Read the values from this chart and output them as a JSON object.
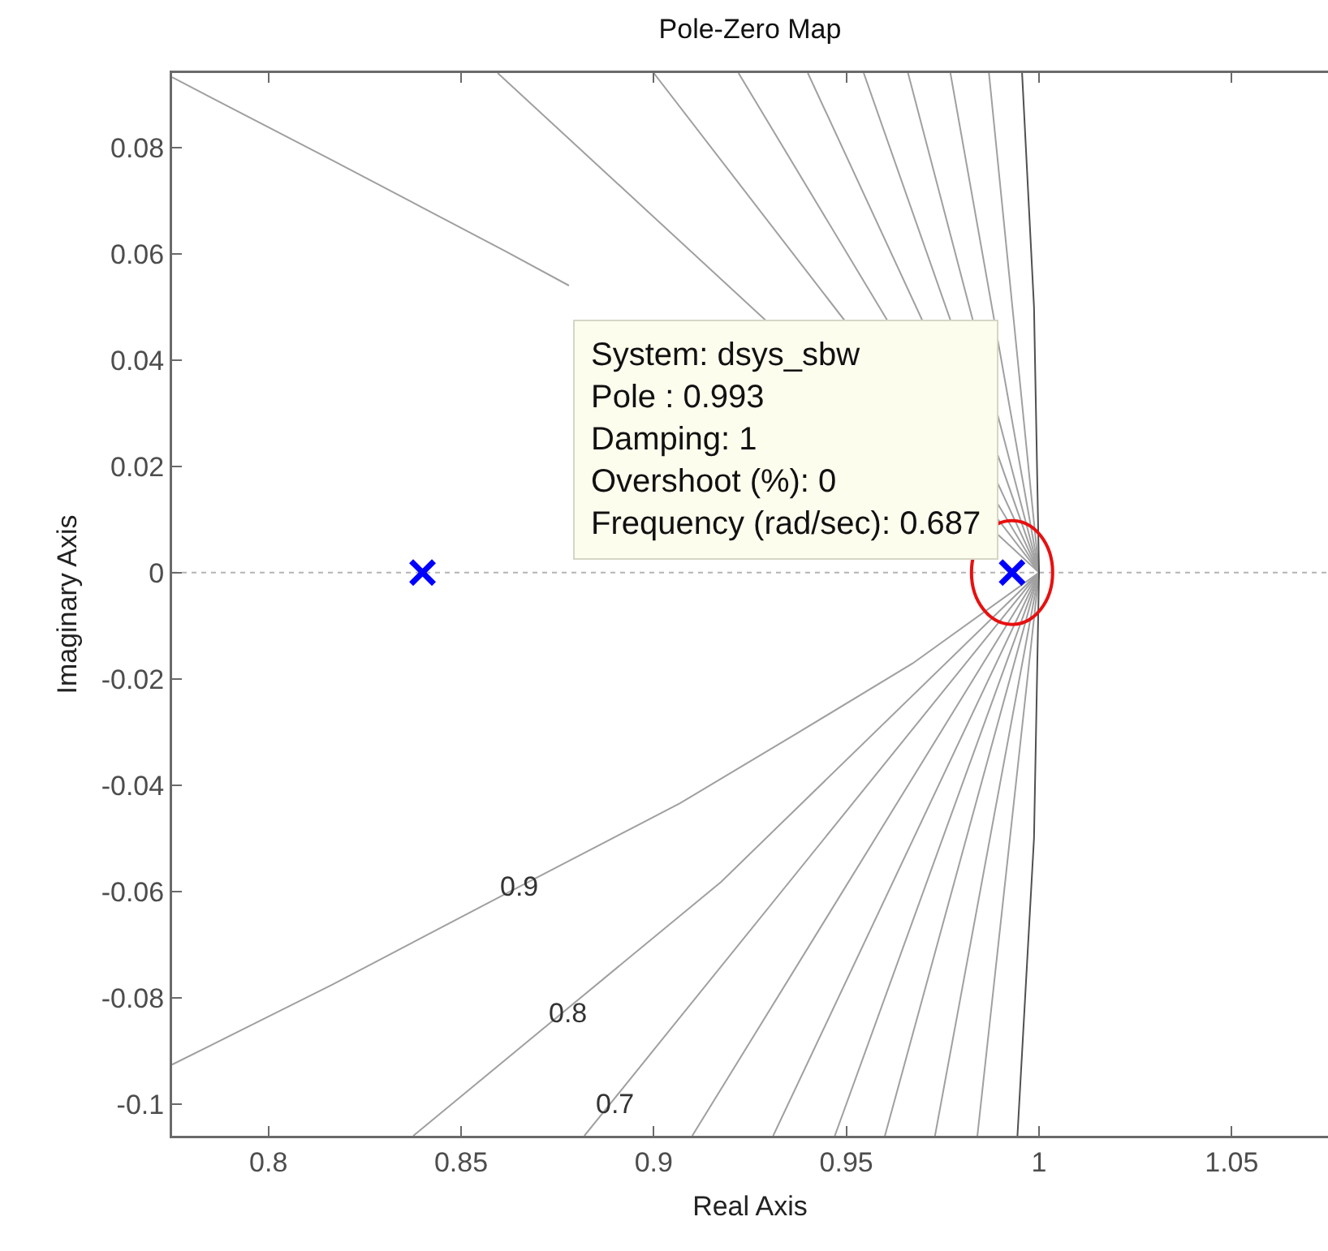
{
  "chart_data": {
    "type": "scatter",
    "title": "Pole-Zero Map",
    "xlabel": "Real Axis",
    "ylabel": "Imaginary Axis",
    "xlim": [
      0.775,
      1.075
    ],
    "ylim": [
      -0.106,
      0.094
    ],
    "xticks": [
      0.8,
      0.85,
      0.9,
      0.95,
      1,
      1.05
    ],
    "yticks": [
      -0.1,
      -0.08,
      -0.06,
      -0.04,
      -0.02,
      0,
      0.02,
      0.04,
      0.06,
      0.08
    ],
    "grid": false,
    "ref_lines": [
      {
        "axis": "y",
        "value": 0,
        "color": "#b4b4b4",
        "line_style": "dotted"
      }
    ],
    "annotations": [
      {
        "text": "System: dsys_sbw\nPole : 0.993\nDamping: 1\nOvershoot (%): 0\nFrequency (rad/sec): 0.687",
        "x": 0.993,
        "y": 0
      },
      {
        "text": "0.9",
        "x": 0.865,
        "y": -0.059
      },
      {
        "text": "0.8",
        "x": 0.878,
        "y": -0.083
      },
      {
        "text": "0.7",
        "x": 0.89,
        "y": -0.1
      }
    ],
    "series": [
      {
        "type": "line",
        "color": "#a0a0a0",
        "x": [
          0.775,
          0.8165,
          0.8617,
          0.9069,
          0.9371,
          0.9672,
          1,
          null,
          0.878,
          0.8617,
          0.8165,
          0.775
        ],
        "values": [
          -0.0926,
          -0.0776,
          -0.0604,
          -0.0434,
          -0.0303,
          -0.0171,
          0,
          null,
          0.054,
          0.0604,
          0.0776,
          0.0932
        ]
      },
      {
        "type": "line",
        "color": "#a0a0a0",
        "x": [
          0.8376,
          0.9175,
          1,
          0.8595
        ],
        "values": [
          -0.106,
          -0.0582,
          0,
          0.094
        ]
      },
      {
        "type": "line",
        "color": "#a0a0a0",
        "x": [
          0.882,
          1,
          0.9
        ],
        "values": [
          -0.106,
          0,
          0.094
        ]
      },
      {
        "type": "line",
        "color": "#a0a0a0",
        "x": [
          0.91,
          1,
          0.922
        ],
        "values": [
          -0.106,
          0,
          0.094
        ]
      },
      {
        "type": "line",
        "color": "#a0a0a0",
        "x": [
          0.931,
          1,
          0.94
        ],
        "values": [
          -0.106,
          0,
          0.094
        ]
      },
      {
        "type": "line",
        "color": "#a0a0a0",
        "x": [
          0.947,
          1,
          0.9545
        ],
        "values": [
          -0.106,
          0,
          0.094
        ]
      },
      {
        "type": "line",
        "color": "#a0a0a0",
        "x": [
          0.96,
          1,
          0.966
        ],
        "values": [
          -0.106,
          0,
          0.094
        ]
      },
      {
        "type": "line",
        "color": "#a0a0a0",
        "x": [
          0.973,
          1,
          0.977
        ],
        "values": [
          -0.106,
          0,
          0.094
        ]
      },
      {
        "type": "line",
        "color": "#a0a0a0",
        "x": [
          0.984,
          1,
          0.987
        ],
        "values": [
          -0.106,
          0,
          0.094
        ]
      },
      {
        "type": "line",
        "color": "#505050",
        "x": [
          0.9944,
          0.9987,
          1,
          0.9987,
          0.9956
        ],
        "values": [
          -0.106,
          -0.05,
          0,
          0.05,
          0.094
        ]
      },
      {
        "marker": "cross",
        "color": "#0000ff",
        "x": [
          0.84,
          0.993
        ],
        "values": [
          0,
          0
        ]
      }
    ]
  }
}
